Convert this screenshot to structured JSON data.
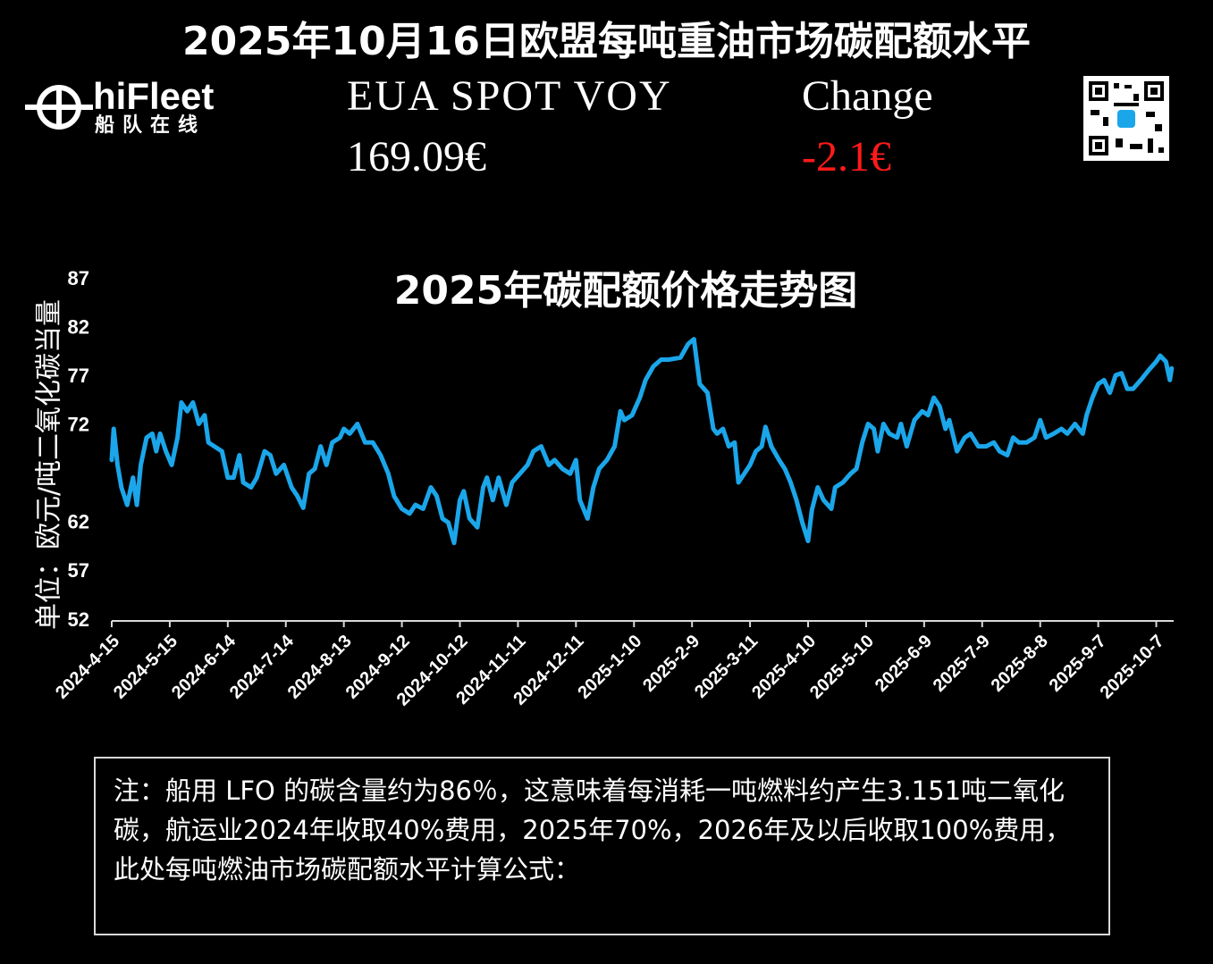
{
  "header": {
    "title": "2025年10月16日欧盟每吨重油市场碳配额水平",
    "logo_name": "hiFleet",
    "logo_subtitle": "船队在线",
    "price_label": "EUA SPOT VOY",
    "price": "169.09€",
    "change_label": "Change",
    "change": "-2.1€"
  },
  "chart_data": {
    "type": "line",
    "title": "2025年碳配额价格走势图",
    "y_label": "单位：欧元/吨二氧化碳当量",
    "color": "#1ba6ea",
    "x": [
      "2024-4-15",
      "2024-4-16",
      "2024-4-18",
      "2024-4-20",
      "2024-4-23",
      "2024-4-26",
      "2024-4-28",
      "2024-4-30",
      "2024-5-3",
      "2024-5-6",
      "2024-5-8",
      "2024-5-10",
      "2024-5-13",
      "2024-5-16",
      "2024-5-19",
      "2024-5-21",
      "2024-5-24",
      "2024-5-27",
      "2024-5-30",
      "2024-6-2",
      "2024-6-4",
      "2024-6-7",
      "2024-6-11",
      "2024-6-14",
      "2024-6-17",
      "2024-6-20",
      "2024-6-22",
      "2024-6-26",
      "2024-6-29",
      "2024-7-3",
      "2024-7-6",
      "2024-7-9",
      "2024-7-13",
      "2024-7-17",
      "2024-7-20",
      "2024-7-23",
      "2024-7-26",
      "2024-7-29",
      "2024-8-1",
      "2024-8-4",
      "2024-8-7",
      "2024-8-11",
      "2024-8-13",
      "2024-8-16",
      "2024-8-20",
      "2024-8-24",
      "2024-8-28",
      "2024-9-1",
      "2024-9-5",
      "2024-9-8",
      "2024-9-12",
      "2024-9-16",
      "2024-9-19",
      "2024-9-23",
      "2024-9-27",
      "2024-9-30",
      "2024-10-3",
      "2024-10-6",
      "2024-10-9",
      "2024-10-12",
      "2024-10-14",
      "2024-10-17",
      "2024-10-21",
      "2024-10-24",
      "2024-10-26",
      "2024-10-29",
      "2024-11-1",
      "2024-11-5",
      "2024-11-8",
      "2024-11-12",
      "2024-11-16",
      "2024-11-19",
      "2024-11-23",
      "2024-11-27",
      "2024-11-30",
      "2024-12-4",
      "2024-12-8",
      "2024-12-11",
      "2024-12-13",
      "2024-12-17",
      "2024-12-20",
      "2024-12-23",
      "2024-12-27",
      "2024-12-31",
      "2025-1-3",
      "2025-1-5",
      "2025-1-9",
      "2025-1-13",
      "2025-1-16",
      "2025-1-20",
      "2025-1-24",
      "2025-1-28",
      "2025-2-3",
      "2025-2-7",
      "2025-2-10",
      "2025-2-13",
      "2025-2-17",
      "2025-2-20",
      "2025-2-22",
      "2025-2-25",
      "2025-2-28",
      "2025-3-3",
      "2025-3-5",
      "2025-3-8",
      "2025-3-11",
      "2025-3-14",
      "2025-3-17",
      "2025-3-19",
      "2025-3-22",
      "2025-3-26",
      "2025-3-29",
      "2025-4-1",
      "2025-4-4",
      "2025-4-7",
      "2025-4-10",
      "2025-4-12",
      "2025-4-15",
      "2025-4-18",
      "2025-4-22",
      "2025-4-24",
      "2025-4-28",
      "2025-5-2",
      "2025-5-5",
      "2025-5-8",
      "2025-5-11",
      "2025-5-14",
      "2025-5-16",
      "2025-5-19",
      "2025-5-22",
      "2025-5-26",
      "2025-5-28",
      "2025-5-31",
      "2025-6-4",
      "2025-6-8",
      "2025-6-11",
      "2025-6-14",
      "2025-6-17",
      "2025-6-20",
      "2025-6-22",
      "2025-6-26",
      "2025-6-30",
      "2025-7-3",
      "2025-7-7",
      "2025-7-11",
      "2025-7-15",
      "2025-7-18",
      "2025-7-22",
      "2025-7-25",
      "2025-7-28",
      "2025-8-1",
      "2025-8-5",
      "2025-8-8",
      "2025-8-11",
      "2025-8-15",
      "2025-8-19",
      "2025-8-22",
      "2025-8-26",
      "2025-8-30",
      "2025-9-1",
      "2025-9-4",
      "2025-9-7",
      "2025-9-10",
      "2025-9-13",
      "2025-9-16",
      "2025-9-19",
      "2025-9-22",
      "2025-9-25",
      "2025-9-29",
      "2025-10-3",
      "2025-10-7",
      "2025-10-9",
      "2025-10-12",
      "2025-10-14",
      "2025-10-15"
    ],
    "values": [
      68.5,
      71.7,
      68.0,
      65.7,
      63.9,
      66.7,
      63.9,
      68.0,
      70.8,
      71.2,
      69.4,
      71.2,
      69.4,
      68.0,
      70.8,
      74.4,
      73.5,
      74.4,
      72.2,
      73.1,
      70.3,
      69.9,
      69.4,
      66.7,
      66.7,
      69.0,
      66.2,
      65.7,
      66.7,
      69.4,
      69.0,
      67.1,
      68.0,
      65.7,
      64.8,
      63.6,
      67.1,
      67.6,
      69.9,
      68.0,
      70.3,
      70.8,
      71.7,
      71.2,
      72.2,
      70.3,
      70.3,
      69.0,
      67.1,
      64.8,
      63.5,
      63.0,
      63.9,
      63.5,
      65.7,
      64.8,
      62.5,
      62.1,
      60.0,
      64.4,
      65.3,
      62.5,
      61.6,
      65.7,
      66.7,
      64.4,
      66.7,
      63.9,
      66.2,
      67.1,
      68.0,
      69.4,
      69.9,
      68.0,
      68.5,
      67.6,
      67.1,
      68.5,
      64.4,
      62.5,
      65.7,
      67.6,
      68.5,
      69.9,
      73.5,
      72.6,
      73.1,
      74.9,
      76.7,
      78.1,
      78.8,
      78.8,
      79.0,
      80.4,
      80.9,
      76.3,
      75.4,
      71.7,
      71.2,
      71.7,
      69.9,
      70.3,
      66.2,
      67.1,
      68.0,
      69.4,
      69.9,
      71.9,
      69.9,
      68.5,
      67.6,
      66.2,
      64.4,
      62.1,
      60.2,
      63.4,
      65.7,
      64.4,
      63.5,
      65.7,
      66.2,
      67.1,
      67.6,
      70.3,
      72.2,
      71.7,
      69.4,
      72.2,
      71.2,
      70.8,
      72.2,
      69.9,
      72.6,
      73.5,
      73.1,
      74.9,
      74.0,
      71.7,
      72.6,
      69.4,
      70.8,
      71.2,
      69.9,
      69.9,
      70.3,
      69.4,
      69.0,
      70.8,
      70.3,
      70.3,
      70.8,
      72.6,
      70.8,
      71.2,
      71.7,
      71.2,
      72.2,
      71.2,
      73.1,
      74.9,
      76.3,
      76.7,
      75.4,
      77.2,
      77.4,
      75.8,
      75.8,
      76.7,
      77.7,
      78.6,
      79.2,
      78.6,
      76.7,
      77.9
    ],
    "xlim": [
      "2024-4-15",
      "2025-10-16"
    ],
    "xticks": [
      "2024-4-15",
      "2024-5-15",
      "2024-6-14",
      "2024-7-14",
      "2024-8-13",
      "2024-9-12",
      "2024-10-12",
      "2024-11-11",
      "2024-12-11",
      "2025-1-10",
      "2025-2-9",
      "2025-3-11",
      "2025-4-10",
      "2025-5-10",
      "2025-6-9",
      "2025-7-9",
      "2025-8-8",
      "2025-9-7",
      "2025-10-7"
    ],
    "ylim": [
      52,
      87
    ],
    "yticks": [
      52,
      57,
      62,
      72,
      77,
      82,
      87
    ],
    "grid": false
  },
  "note": "注：船用 LFO 的碳含量约为86％，这意味着每消耗一吨燃料约产生3.151吨二氧化碳，航运业2024年收取40%费用，2025年70%，2026年及以后收取100%费用，此处每吨燃油市场碳配额水平计算公式："
}
